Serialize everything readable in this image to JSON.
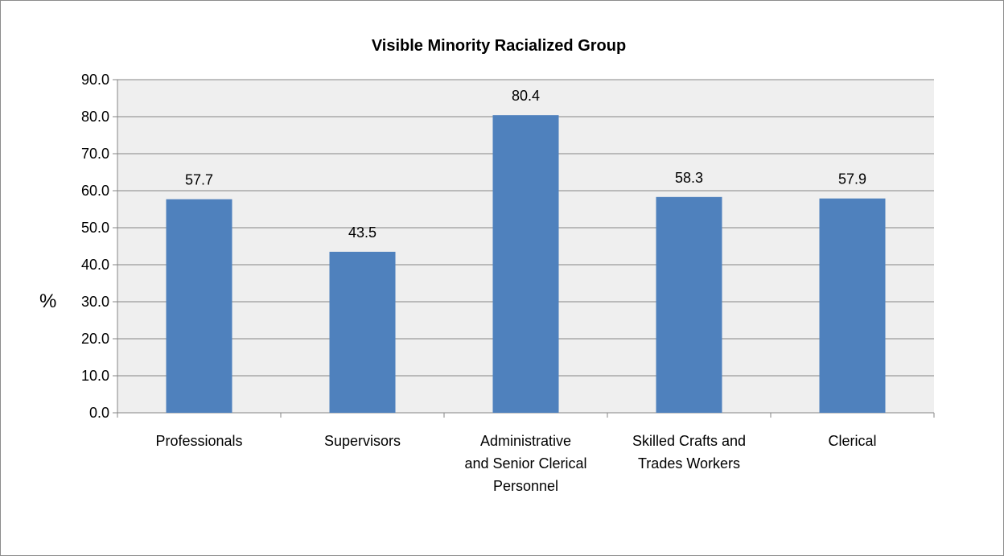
{
  "chart_data": {
    "type": "bar",
    "title": "Visible Minority Racialized Group",
    "ylabel": "%",
    "xlabel": "",
    "categories": [
      [
        "Professionals"
      ],
      [
        "Supervisors"
      ],
      [
        "Administrative",
        "and Senior Clerical",
        "Personnel"
      ],
      [
        "Skilled Crafts and",
        "Trades Workers"
      ],
      [
        "Clerical"
      ]
    ],
    "values": [
      57.7,
      43.5,
      80.4,
      58.3,
      57.9
    ],
    "ylim": [
      0,
      90
    ],
    "yticks": [
      "0.0",
      "10.0",
      "20.0",
      "30.0",
      "40.0",
      "50.0",
      "60.0",
      "70.0",
      "80.0",
      "90.0"
    ],
    "grid": true,
    "legend": "none",
    "bar_color": "#4f81bd",
    "plot_background": "#efefef",
    "grid_color": "#868686"
  }
}
